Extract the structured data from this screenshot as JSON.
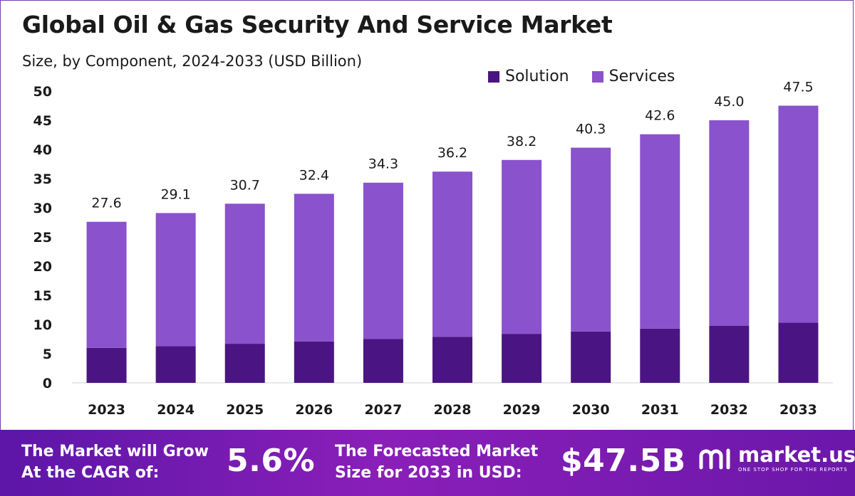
{
  "colors": {
    "solution": "#4a1582",
    "services": "#8a52cc",
    "axis_text": "#1a1a1a"
  },
  "chart_data": {
    "type": "bar",
    "stacked": true,
    "title": "Global Oil & Gas Security And Service Market",
    "subtitle": "Size, by Component, 2024-2033 (USD Billion)",
    "categories": [
      "2023",
      "2024",
      "2025",
      "2026",
      "2027",
      "2028",
      "2029",
      "2030",
      "2031",
      "2032",
      "2033"
    ],
    "series": [
      {
        "name": "Solution",
        "values": [
          6.0,
          6.3,
          6.7,
          7.1,
          7.5,
          7.9,
          8.4,
          8.8,
          9.3,
          9.8,
          10.3
        ]
      },
      {
        "name": "Services",
        "values": [
          21.6,
          22.8,
          24.0,
          25.3,
          26.8,
          28.3,
          29.8,
          31.5,
          33.3,
          35.2,
          37.2
        ]
      }
    ],
    "totals": [
      "27.6",
      "29.1",
      "30.7",
      "32.4",
      "34.3",
      "36.2",
      "38.2",
      "40.3",
      "42.6",
      "45.0",
      "47.5"
    ],
    "ylim": [
      0,
      50
    ],
    "yticks": [
      "0",
      "5",
      "10",
      "15",
      "20",
      "25",
      "30",
      "35",
      "40",
      "45",
      "50"
    ],
    "legend_position": "top-right"
  },
  "banner": {
    "cagr_label_line1": "The Market will Grow",
    "cagr_label_line2": "At the CAGR of:",
    "cagr_value": "5.6%",
    "forecast_label_line1": "The Forecasted Market",
    "forecast_label_line2": "Size for 2033 in USD:",
    "forecast_value": "$47.5B",
    "brand_name": "market.us",
    "brand_tagline": "ONE STOP SHOP FOR THE REPORTS"
  }
}
